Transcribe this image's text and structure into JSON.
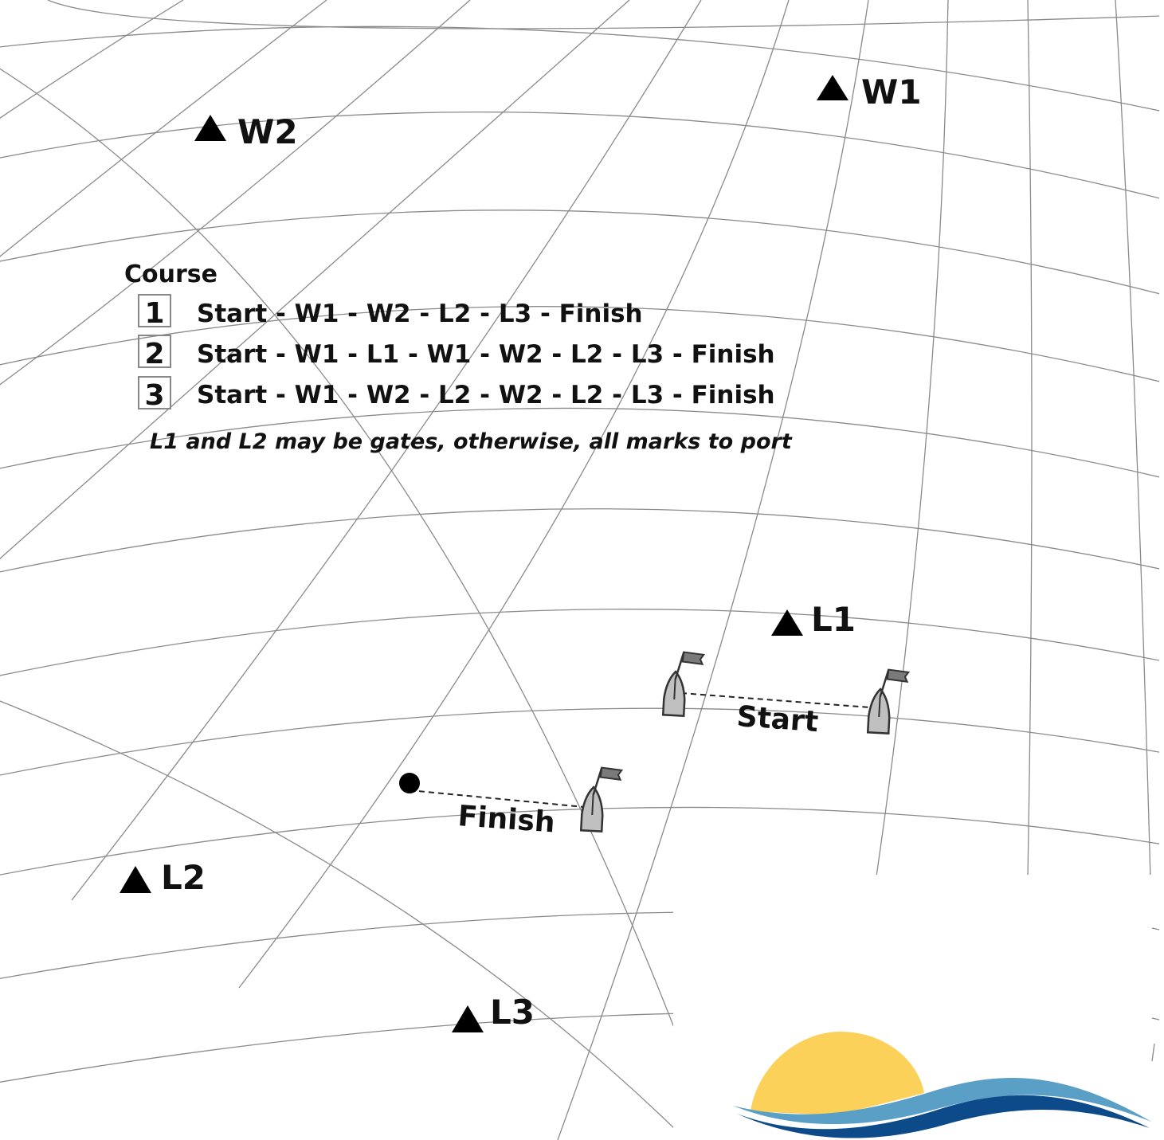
{
  "marks": [
    {
      "id": "W1",
      "label": "W1"
    },
    {
      "id": "W2",
      "label": "W2"
    },
    {
      "id": "L1",
      "label": "L1"
    },
    {
      "id": "L2",
      "label": "L2"
    },
    {
      "id": "L3",
      "label": "L3"
    }
  ],
  "lines": {
    "start_label": "Start",
    "finish_label": "Finish"
  },
  "course": {
    "title": "Course",
    "options": [
      {
        "number": "1",
        "route": "Start - W1 - W2 - L2 - L3 - Finish"
      },
      {
        "number": "2",
        "route": "Start - W1 - L1 - W1 - W2 - L2 - L3 - Finish"
      },
      {
        "number": "3",
        "route": "Start - W1 - W2 - L2 - W2 - L2 - L3 - Finish"
      }
    ],
    "note": "L1 and L2 may be gates, otherwise, all marks to port"
  },
  "colors": {
    "grid": "#8a8a8a",
    "mark": "#000000",
    "boat_fill": "#c0c0c0",
    "flag_fill": "#7a7a7a",
    "sun": "#fcd15a",
    "wave_light": "#5a9fc6",
    "wave_dark": "#0d4a8a"
  }
}
